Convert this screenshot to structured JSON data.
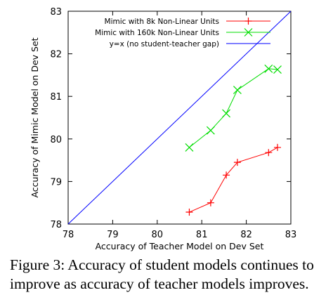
{
  "chart_data": {
    "type": "line",
    "title": "",
    "xlabel": "Accuracy of Teacher Model on Dev Set",
    "ylabel": "Accuracy of Mimic Model on Dev Set",
    "xlim": [
      78,
      83
    ],
    "ylim": [
      78,
      83
    ],
    "xticks": [
      "78",
      "79",
      "80",
      "81",
      "82",
      "83"
    ],
    "yticks": [
      "78",
      "79",
      "80",
      "81",
      "82",
      "83"
    ],
    "grid": false,
    "legend_position": "top-left",
    "series": [
      {
        "name": "Mimic with 8k Non-Linear Units",
        "color": "#ff0000",
        "marker": "plus",
        "x": [
          80.72,
          81.2,
          81.55,
          81.8,
          82.5,
          82.7
        ],
        "y": [
          78.28,
          78.5,
          79.15,
          79.45,
          79.68,
          79.8
        ]
      },
      {
        "name": "Mimic with 160k Non-Linear Units",
        "color": "#00dd00",
        "marker": "x",
        "x": [
          80.72,
          81.2,
          81.55,
          81.8,
          82.5,
          82.7
        ],
        "y": [
          79.8,
          80.2,
          80.6,
          81.15,
          81.65,
          81.63
        ]
      },
      {
        "name": "y=x (no student-teacher gap)",
        "color": "#0000ff",
        "marker": "none",
        "x": [
          78,
          83
        ],
        "y": [
          78,
          83
        ]
      }
    ]
  },
  "caption": {
    "line1": "Figure 3: Accuracy of student models continues to",
    "line2": "improve as accuracy of teacher models improves."
  }
}
